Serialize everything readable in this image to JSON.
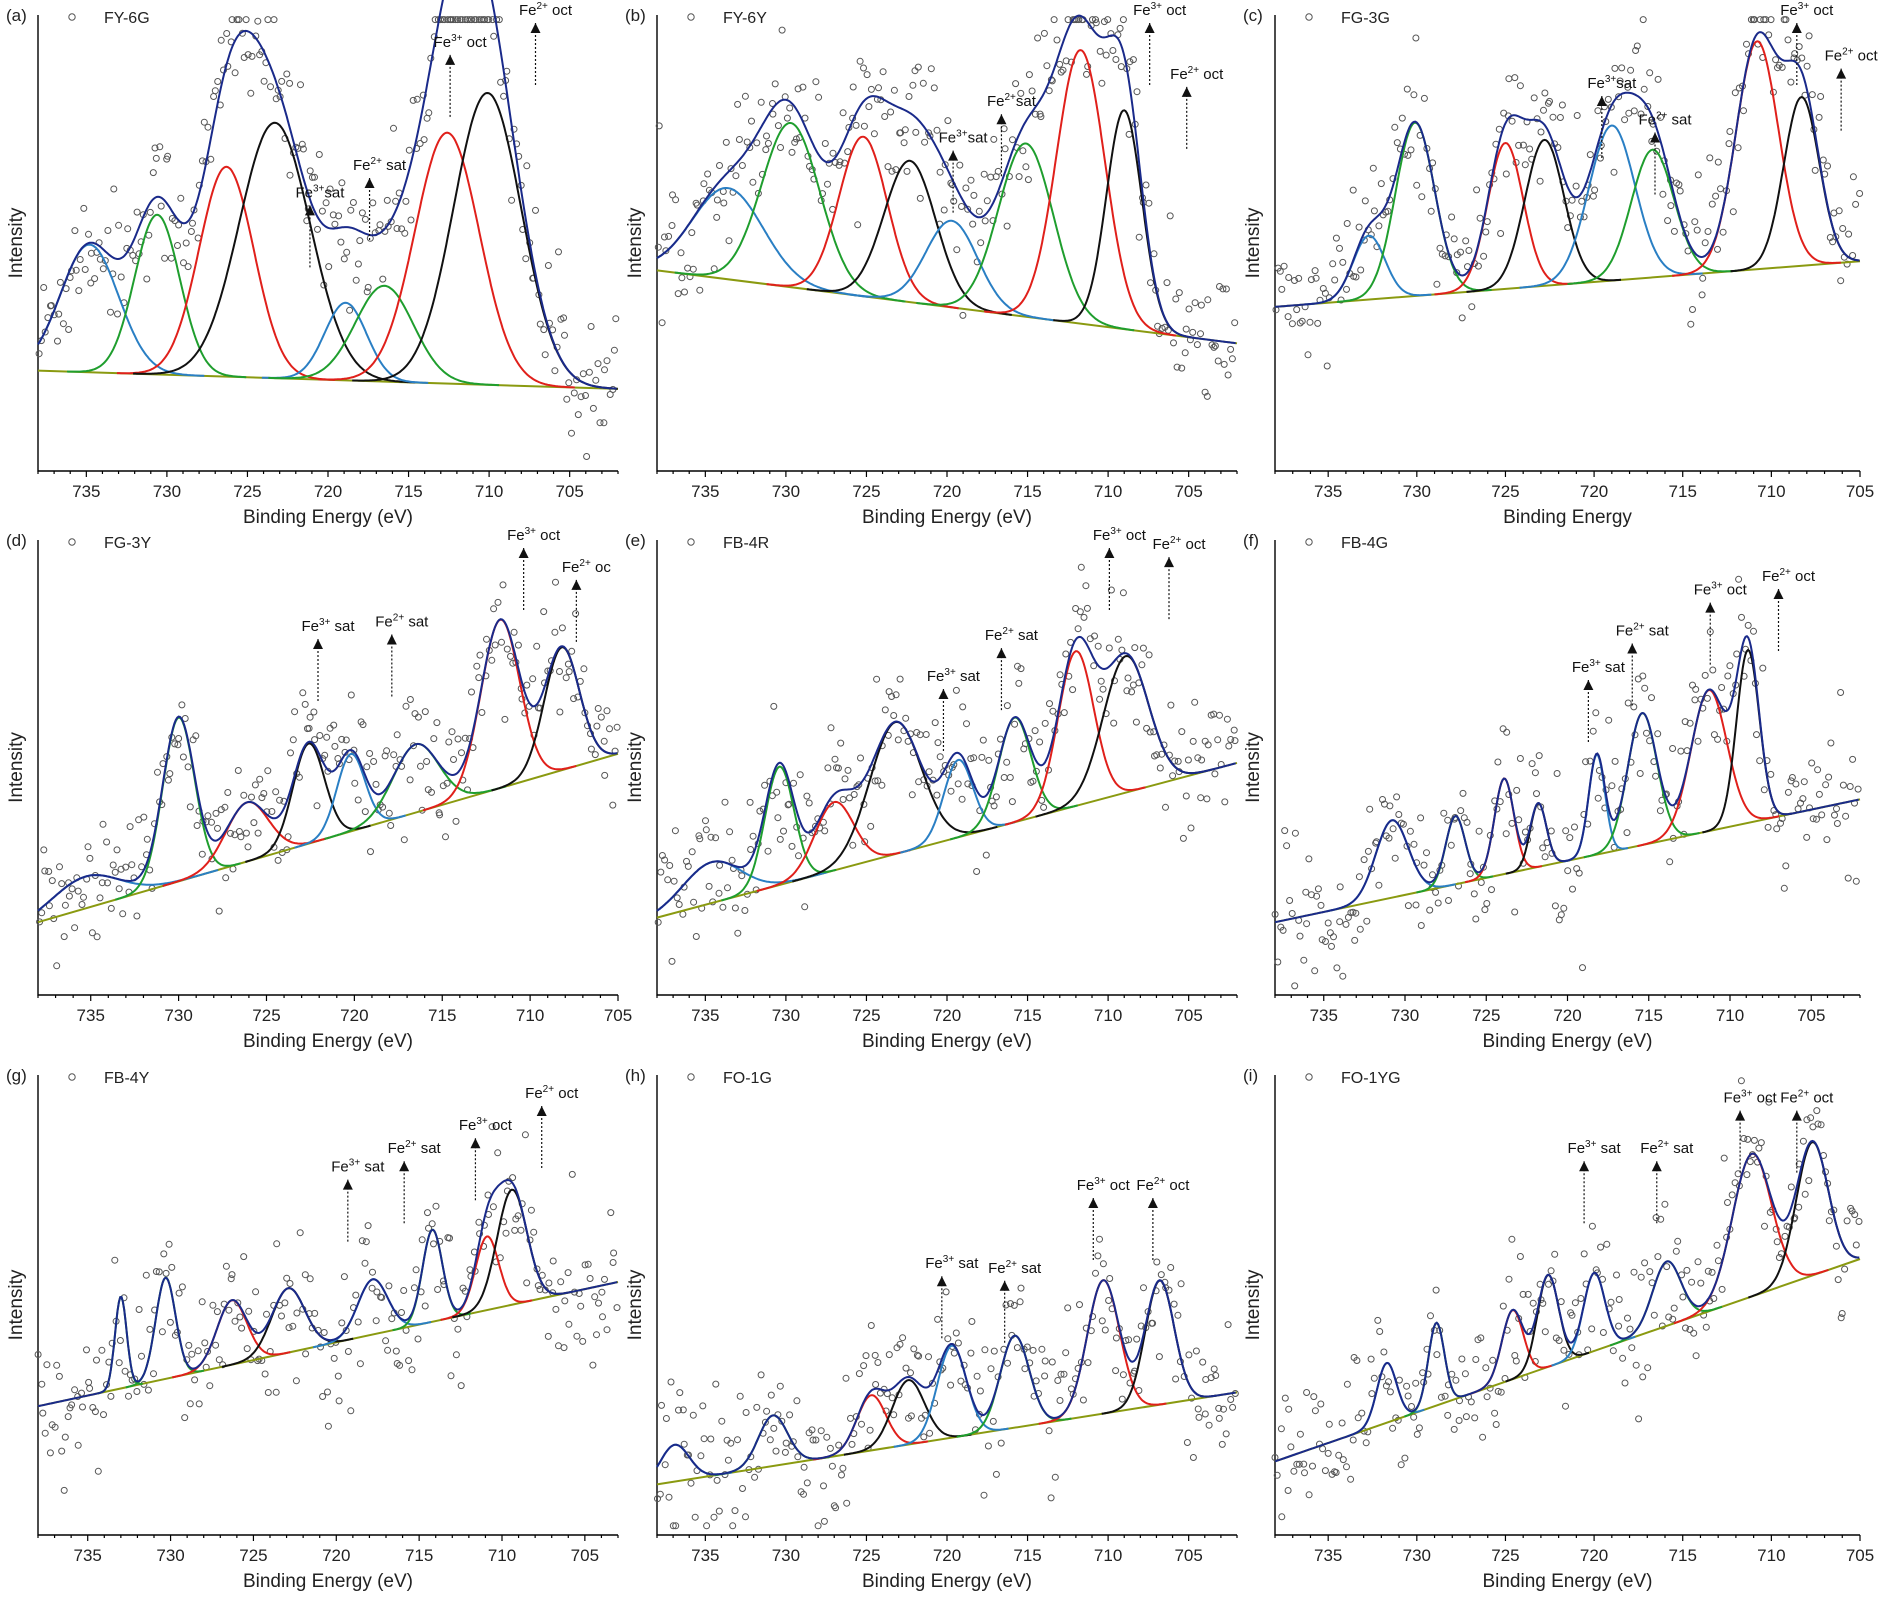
{
  "chart_data": [
    {
      "type": "scatter",
      "panel": "(a)",
      "legend": "FY-6G",
      "title": "",
      "xlabel": "Binding Energy (eV)",
      "ylabel": "Intensity",
      "xlim": [
        738,
        702
      ],
      "ticks": [
        735,
        730,
        725,
        720,
        715,
        710,
        705
      ],
      "tick_labels": [
        "735",
        "730",
        "725",
        "720",
        "715",
        "710",
        "705"
      ],
      "background": [
        0.22,
        0.18
      ],
      "peaks": [
        {
          "center": 734.8,
          "height": 0.28,
          "width": 1.8,
          "color": "#2a7fc4"
        },
        {
          "center": 730.6,
          "height": 0.35,
          "width": 1.4,
          "color": "#1f9e2e"
        },
        {
          "center": 726.3,
          "height": 0.46,
          "width": 1.7,
          "color": "#e0201b"
        },
        {
          "center": 723.3,
          "height": 0.56,
          "width": 2.2,
          "color": "#111111"
        },
        {
          "center": 718.9,
          "height": 0.17,
          "width": 1.3,
          "color": "#2a7fc4"
        },
        {
          "center": 716.5,
          "height": 0.21,
          "width": 1.8,
          "color": "#1f9e2e"
        },
        {
          "center": 712.6,
          "height": 0.55,
          "width": 2.0,
          "color": "#e0201b"
        },
        {
          "center": 710.1,
          "height": 0.64,
          "width": 2.1,
          "color": "#111111"
        }
      ],
      "annotations": [
        {
          "base": "Fe",
          "sup": "2+",
          "rest": " oct",
          "x": 706.5,
          "y": 1.0
        },
        {
          "base": "Fe",
          "sup": "3+",
          "rest": " oct",
          "x": 711.8,
          "y": 0.93
        },
        {
          "base": "Fe",
          "sup": "2+",
          "rest": " sat",
          "x": 716.8,
          "y": 0.66
        },
        {
          "base": "Fe",
          "sup": "3+",
          "rest": "sat",
          "x": 720.5,
          "y": 0.6
        }
      ]
    },
    {
      "type": "scatter",
      "panel": "(b)",
      "legend": "FY-6Y",
      "title": "",
      "xlabel": "Binding Energy (eV)",
      "ylabel": "Intensity",
      "xlim": [
        738,
        702
      ],
      "ticks": [
        735,
        730,
        725,
        720,
        715,
        710,
        705
      ],
      "tick_labels": [
        "735",
        "730",
        "725",
        "720",
        "715",
        "710",
        "705"
      ],
      "background": [
        0.44,
        0.28
      ],
      "peaks": [
        {
          "center": 733.6,
          "height": 0.2,
          "width": 2.2,
          "color": "#2a7fc4"
        },
        {
          "center": 729.7,
          "height": 0.36,
          "width": 1.8,
          "color": "#1f9e2e"
        },
        {
          "center": 725.2,
          "height": 0.35,
          "width": 1.5,
          "color": "#e0201b"
        },
        {
          "center": 722.3,
          "height": 0.31,
          "width": 1.6,
          "color": "#111111"
        },
        {
          "center": 719.7,
          "height": 0.19,
          "width": 1.6,
          "color": "#2a7fc4"
        },
        {
          "center": 715.1,
          "height": 0.38,
          "width": 1.7,
          "color": "#1f9e2e"
        },
        {
          "center": 711.7,
          "height": 0.6,
          "width": 1.5,
          "color": "#e0201b"
        },
        {
          "center": 709.0,
          "height": 0.48,
          "width": 1.1,
          "color": "#111111"
        }
      ],
      "annotations": [
        {
          "base": "Fe",
          "sup": "3+",
          "rest": " oct",
          "x": 706.8,
          "y": 1.0
        },
        {
          "base": "Fe",
          "sup": "2+",
          "rest": " oct",
          "x": 704.5,
          "y": 0.86
        },
        {
          "base": "Fe",
          "sup": "2+",
          "rest": "sat",
          "x": 716.0,
          "y": 0.8
        },
        {
          "base": "Fe",
          "sup": "3+",
          "rest": "sat",
          "x": 719.0,
          "y": 0.72
        }
      ]
    },
    {
      "type": "scatter",
      "panel": "(c)",
      "legend": "FG-3G",
      "title": "",
      "xlabel": "Binding Energy",
      "ylabel": "Intensity",
      "xlim": [
        738,
        705
      ],
      "ticks": [
        735,
        730,
        725,
        720,
        715,
        710,
        705
      ],
      "tick_labels": [
        "735",
        "730",
        "725",
        "720",
        "715",
        "710",
        "705"
      ],
      "background": [
        0.36,
        0.46
      ],
      "peaks": [
        {
          "center": 732.7,
          "height": 0.14,
          "width": 0.9,
          "color": "#2a7fc4"
        },
        {
          "center": 730.1,
          "height": 0.38,
          "width": 1.1,
          "color": "#1f9e2e"
        },
        {
          "center": 725.0,
          "height": 0.32,
          "width": 1.0,
          "color": "#e0201b"
        },
        {
          "center": 722.8,
          "height": 0.32,
          "width": 1.1,
          "color": "#111111"
        },
        {
          "center": 719.0,
          "height": 0.34,
          "width": 1.3,
          "color": "#2a7fc4"
        },
        {
          "center": 716.7,
          "height": 0.28,
          "width": 1.2,
          "color": "#1f9e2e"
        },
        {
          "center": 710.8,
          "height": 0.5,
          "width": 1.2,
          "color": "#e0201b"
        },
        {
          "center": 708.3,
          "height": 0.37,
          "width": 1.0,
          "color": "#111111"
        }
      ],
      "annotations": [
        {
          "base": "Fe",
          "sup": "3+",
          "rest": " oct",
          "x": 708.0,
          "y": 1.0
        },
        {
          "base": "Fe",
          "sup": "2+",
          "rest": " oct",
          "x": 705.5,
          "y": 0.9
        },
        {
          "base": "Fe",
          "sup": "3+",
          "rest": "sat",
          "x": 719.0,
          "y": 0.84
        },
        {
          "base": "Fe",
          "sup": "2+",
          "rest": " sat",
          "x": 716.0,
          "y": 0.76
        }
      ]
    },
    {
      "type": "scatter",
      "panel": "(d)",
      "legend": "FG-3Y",
      "title": "",
      "xlabel": "Binding Energy (eV)",
      "ylabel": "Intensity",
      "xlim": [
        738,
        705
      ],
      "ticks": [
        735,
        730,
        725,
        720,
        715,
        710,
        705
      ],
      "tick_labels": [
        "735",
        "730",
        "725",
        "720",
        "715",
        "710",
        "705"
      ],
      "background": [
        0.16,
        0.53
      ],
      "peaks": [
        {
          "center": 735.3,
          "height": 0.07,
          "width": 1.9,
          "color": "#2a7fc4"
        },
        {
          "center": 730.0,
          "height": 0.36,
          "width": 0.9,
          "color": "#1f9e2e"
        },
        {
          "center": 726.1,
          "height": 0.13,
          "width": 1.2,
          "color": "#e0201b"
        },
        {
          "center": 722.6,
          "height": 0.22,
          "width": 0.9,
          "color": "#111111"
        },
        {
          "center": 720.2,
          "height": 0.17,
          "width": 0.8,
          "color": "#2a7fc4"
        },
        {
          "center": 716.5,
          "height": 0.15,
          "width": 1.3,
          "color": "#1f9e2e"
        },
        {
          "center": 711.7,
          "height": 0.37,
          "width": 1.1,
          "color": "#e0201b"
        },
        {
          "center": 708.2,
          "height": 0.27,
          "width": 1.0,
          "color": "#111111"
        }
      ],
      "annotations": [
        {
          "base": "Fe",
          "sup": "3+",
          "rest": " oct",
          "x": 709.8,
          "y": 1.0
        },
        {
          "base": "Fe",
          "sup": "2+",
          "rest": " oc",
          "x": 706.8,
          "y": 0.93
        },
        {
          "base": "Fe",
          "sup": "3+",
          "rest": " sat",
          "x": 721.5,
          "y": 0.8
        },
        {
          "base": "Fe",
          "sup": "2+",
          "rest": " sat",
          "x": 717.3,
          "y": 0.81
        }
      ]
    },
    {
      "type": "scatter",
      "panel": "(e)",
      "legend": "FB-4R",
      "title": "",
      "xlabel": "Binding Energy (eV)",
      "ylabel": "Intensity",
      "xlim": [
        738,
        702
      ],
      "ticks": [
        735,
        730,
        725,
        720,
        715,
        710,
        705
      ],
      "tick_labels": [
        "735",
        "730",
        "725",
        "720",
        "715",
        "710",
        "705"
      ],
      "background": [
        0.17,
        0.51
      ],
      "peaks": [
        {
          "center": 734.6,
          "height": 0.09,
          "width": 1.8,
          "color": "#2a7fc4"
        },
        {
          "center": 730.4,
          "height": 0.26,
          "width": 0.9,
          "color": "#1f9e2e"
        },
        {
          "center": 727.0,
          "height": 0.15,
          "width": 1.2,
          "color": "#e0201b"
        },
        {
          "center": 723.2,
          "height": 0.29,
          "width": 1.6,
          "color": "#111111"
        },
        {
          "center": 719.3,
          "height": 0.17,
          "width": 0.9,
          "color": "#2a7fc4"
        },
        {
          "center": 715.8,
          "height": 0.23,
          "width": 1.0,
          "color": "#1f9e2e"
        },
        {
          "center": 712.0,
          "height": 0.34,
          "width": 1.1,
          "color": "#e0201b"
        },
        {
          "center": 708.9,
          "height": 0.3,
          "width": 1.4,
          "color": "#111111"
        }
      ],
      "annotations": [
        {
          "base": "Fe",
          "sup": "3+",
          "rest": " oct",
          "x": 709.3,
          "y": 1.0
        },
        {
          "base": "Fe",
          "sup": "2+",
          "rest": " oct",
          "x": 705.6,
          "y": 0.98
        },
        {
          "base": "Fe",
          "sup": "2+",
          "rest": " sat",
          "x": 716.0,
          "y": 0.78
        },
        {
          "base": "Fe",
          "sup": "3+",
          "rest": " sat",
          "x": 719.6,
          "y": 0.69
        }
      ]
    },
    {
      "type": "scatter",
      "panel": "(f)",
      "legend": "FB-4G",
      "title": "",
      "xlabel": "Binding Energy (eV)",
      "ylabel": "Intensity",
      "xlim": [
        738,
        702
      ],
      "ticks": [
        735,
        730,
        725,
        720,
        715,
        710,
        705
      ],
      "tick_labels": [
        "735",
        "730",
        "725",
        "720",
        "715",
        "710",
        "705"
      ],
      "background": [
        0.16,
        0.43
      ],
      "peaks": [
        {
          "center": 730.8,
          "height": 0.17,
          "width": 1.0,
          "color": "#2a7fc4"
        },
        {
          "center": 726.9,
          "height": 0.15,
          "width": 0.6,
          "color": "#1f9e2e"
        },
        {
          "center": 723.9,
          "height": 0.21,
          "width": 0.6,
          "color": "#e0201b"
        },
        {
          "center": 721.8,
          "height": 0.14,
          "width": 0.5,
          "color": "#111111"
        },
        {
          "center": 718.2,
          "height": 0.22,
          "width": 0.5,
          "color": "#2a7fc4"
        },
        {
          "center": 715.4,
          "height": 0.29,
          "width": 0.9,
          "color": "#1f9e2e"
        },
        {
          "center": 711.3,
          "height": 0.31,
          "width": 1.1,
          "color": "#e0201b"
        },
        {
          "center": 708.9,
          "height": 0.38,
          "width": 0.7,
          "color": "#111111"
        }
      ],
      "annotations": [
        {
          "base": "Fe",
          "sup": "3+",
          "rest": " oct",
          "x": 710.6,
          "y": 0.88
        },
        {
          "base": "Fe",
          "sup": "2+",
          "rest": " oct",
          "x": 706.4,
          "y": 0.91
        },
        {
          "base": "Fe",
          "sup": "2+",
          "rest": " sat",
          "x": 715.4,
          "y": 0.79
        },
        {
          "base": "Fe",
          "sup": "3+",
          "rest": " sat",
          "x": 718.1,
          "y": 0.71
        }
      ]
    },
    {
      "type": "scatter",
      "panel": "(g)",
      "legend": "FB-4Y",
      "title": "",
      "xlabel": "Binding Energy (eV)",
      "ylabel": "Intensity",
      "xlim": [
        738,
        703
      ],
      "ticks": [
        735,
        730,
        725,
        720,
        715,
        710,
        705
      ],
      "tick_labels": [
        "735",
        "730",
        "725",
        "720",
        "715",
        "710",
        "705"
      ],
      "background": [
        0.28,
        0.55
      ],
      "peaks": [
        {
          "center": 733.0,
          "height": 0.2,
          "width": 0.35,
          "color": "#1f9e2e"
        },
        {
          "center": 730.3,
          "height": 0.22,
          "width": 0.6,
          "color": "#1f9e2e"
        },
        {
          "center": 726.3,
          "height": 0.14,
          "width": 0.9,
          "color": "#e0201b"
        },
        {
          "center": 722.9,
          "height": 0.14,
          "width": 1.0,
          "color": "#111111"
        },
        {
          "center": 717.8,
          "height": 0.12,
          "width": 0.9,
          "color": "#2a7fc4"
        },
        {
          "center": 714.2,
          "height": 0.2,
          "width": 0.6,
          "color": "#1f9e2e"
        },
        {
          "center": 710.9,
          "height": 0.16,
          "width": 0.7,
          "color": "#e0201b"
        },
        {
          "center": 709.4,
          "height": 0.25,
          "width": 0.9,
          "color": "#111111"
        }
      ],
      "annotations": [
        {
          "base": "Fe",
          "sup": "2+",
          "rest": " oct",
          "x": 707.0,
          "y": 0.95
        },
        {
          "base": "Fe",
          "sup": "3+",
          "rest": " oct",
          "x": 711.0,
          "y": 0.88
        },
        {
          "base": "Fe",
          "sup": "2+",
          "rest": " sat",
          "x": 715.3,
          "y": 0.83
        },
        {
          "base": "Fe",
          "sup": "3+",
          "rest": " sat",
          "x": 718.7,
          "y": 0.79
        }
      ]
    },
    {
      "type": "scatter",
      "panel": "(h)",
      "legend": "FO-1G",
      "title": "",
      "xlabel": "Binding Energy (eV)",
      "ylabel": "Intensity",
      "xlim": [
        738,
        702
      ],
      "ticks": [
        735,
        730,
        725,
        720,
        715,
        710,
        705
      ],
      "tick_labels": [
        "735",
        "730",
        "725",
        "720",
        "715",
        "710",
        "705"
      ],
      "background": [
        0.11,
        0.31
      ],
      "peaks": [
        {
          "center": 736.9,
          "height": 0.08,
          "width": 0.9,
          "color": "#2a7fc4"
        },
        {
          "center": 730.8,
          "height": 0.11,
          "width": 0.9,
          "color": "#1f9e2e"
        },
        {
          "center": 724.7,
          "height": 0.12,
          "width": 0.9,
          "color": "#e0201b"
        },
        {
          "center": 722.4,
          "height": 0.14,
          "width": 1.0,
          "color": "#111111"
        },
        {
          "center": 719.7,
          "height": 0.2,
          "width": 0.9,
          "color": "#2a7fc4"
        },
        {
          "center": 715.8,
          "height": 0.2,
          "width": 0.9,
          "color": "#1f9e2e"
        },
        {
          "center": 710.3,
          "height": 0.29,
          "width": 1.0,
          "color": "#e0201b"
        },
        {
          "center": 706.8,
          "height": 0.27,
          "width": 0.9,
          "color": "#111111"
        }
      ],
      "annotations": [
        {
          "base": "Fe",
          "sup": "3+",
          "rest": " oct",
          "x": 710.3,
          "y": 0.75
        },
        {
          "base": "Fe",
          "sup": "2+",
          "rest": " oct",
          "x": 706.6,
          "y": 0.75
        },
        {
          "base": "Fe",
          "sup": "3+",
          "rest": " sat",
          "x": 719.7,
          "y": 0.58
        },
        {
          "base": "Fe",
          "sup": "2+",
          "rest": " sat",
          "x": 715.8,
          "y": 0.57
        }
      ]
    },
    {
      "type": "scatter",
      "panel": "(i)",
      "legend": "FO-1YG",
      "title": "",
      "xlabel": "Binding Energy (eV)",
      "ylabel": "Intensity",
      "xlim": [
        738,
        705
      ],
      "ticks": [
        735,
        730,
        725,
        720,
        715,
        710,
        705
      ],
      "tick_labels": [
        "735",
        "730",
        "725",
        "720",
        "715",
        "710",
        "705"
      ],
      "background": [
        0.16,
        0.6
      ],
      "peaks": [
        {
          "center": 731.7,
          "height": 0.13,
          "width": 0.55,
          "color": "#2a7fc4"
        },
        {
          "center": 728.9,
          "height": 0.18,
          "width": 0.45,
          "color": "#1f9e2e"
        },
        {
          "center": 724.6,
          "height": 0.15,
          "width": 0.6,
          "color": "#e0201b"
        },
        {
          "center": 722.6,
          "height": 0.2,
          "width": 0.6,
          "color": "#111111"
        },
        {
          "center": 720.0,
          "height": 0.17,
          "width": 0.6,
          "color": "#2a7fc4"
        },
        {
          "center": 715.9,
          "height": 0.14,
          "width": 0.8,
          "color": "#1f9e2e"
        },
        {
          "center": 711.1,
          "height": 0.31,
          "width": 1.1,
          "color": "#e0201b"
        },
        {
          "center": 707.7,
          "height": 0.29,
          "width": 0.9,
          "color": "#111111"
        }
      ],
      "annotations": [
        {
          "base": "Fe",
          "sup": "3+",
          "rest": " oct",
          "x": 711.2,
          "y": 0.94
        },
        {
          "base": "Fe",
          "sup": "2+",
          "rest": " oct",
          "x": 708.0,
          "y": 0.94
        },
        {
          "base": "Fe",
          "sup": "3+",
          "rest": " sat",
          "x": 720.0,
          "y": 0.83
        },
        {
          "base": "Fe",
          "sup": "2+",
          "rest": " sat",
          "x": 715.9,
          "y": 0.83
        }
      ]
    }
  ],
  "colors": {
    "envelope": "#1a2a8a",
    "baseline": "#8a9a10",
    "data_points": "#555555"
  }
}
